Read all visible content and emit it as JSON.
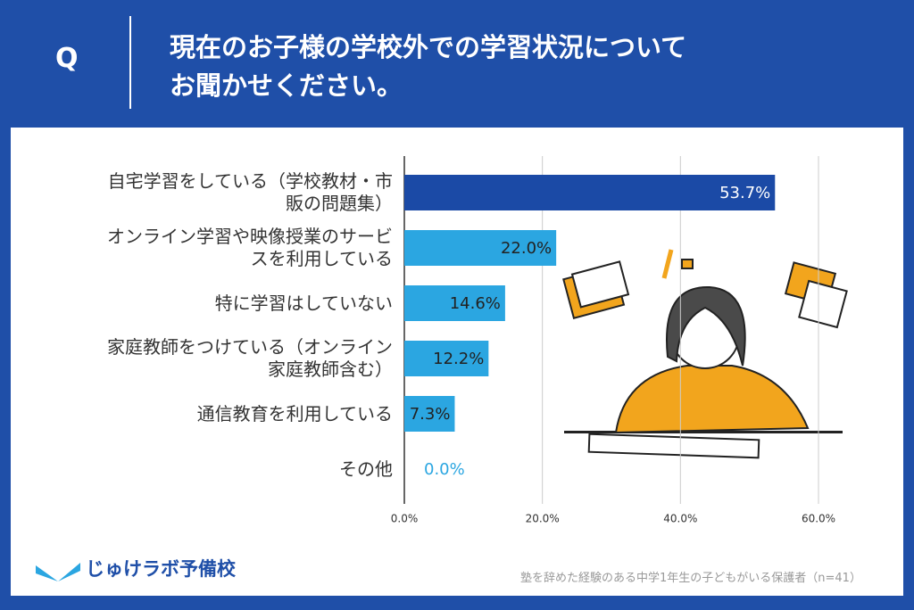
{
  "header": {
    "q": "Q",
    "title": [
      "現在のお子様の学校外での学習状況について",
      "お聞かせください。"
    ]
  },
  "chart_data": {
    "type": "bar",
    "orientation": "horizontal",
    "categories": [
      "自宅学習をしている（学校教材・市販の問題集）",
      "オンライン学習や映像授業のサービスを利用している",
      "特に学習はしていない",
      "家庭教師をつけている（オンライン家庭教師含む）",
      "通信教育を利用している",
      "その他"
    ],
    "values": [
      53.7,
      22.0,
      14.6,
      12.2,
      7.3,
      0.0
    ],
    "value_labels": [
      "53.7%",
      "22.0%",
      "14.6%",
      "12.2%",
      "7.3%",
      "0.0%"
    ],
    "colors": [
      "#1b4aa6",
      "#2ba6e1",
      "#2ba6e1",
      "#2ba6e1",
      "#2ba6e1",
      "#2ba6e1"
    ],
    "xlim": [
      0,
      60
    ],
    "xticks": [
      {
        "value": 0,
        "label": "0.0%"
      },
      {
        "value": 20,
        "label": "20.0%"
      },
      {
        "value": 40,
        "label": "40.0%"
      },
      {
        "value": 60,
        "label": "60.0%"
      }
    ],
    "grid": true
  },
  "footer": {
    "logo": "じゅけラボ予備校",
    "note": "塾を辞めた経験のある中学1年生の子どもがいる保護者（n=41）"
  }
}
